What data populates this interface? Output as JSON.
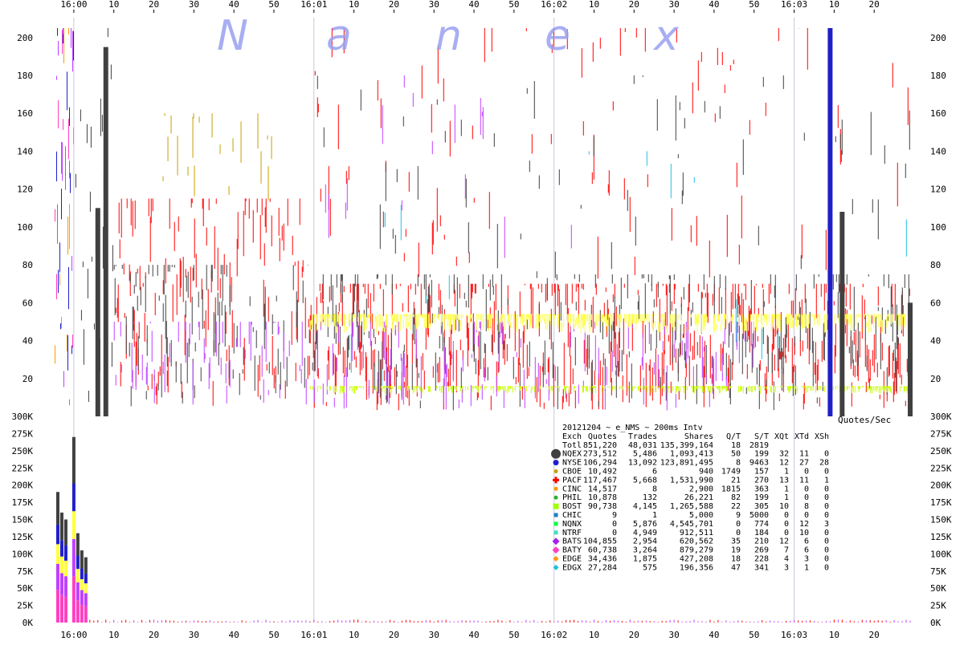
{
  "chart_data": [
    {
      "type": "scatter",
      "panel": "quotes-per-second",
      "watermark": [
        "N",
        "a",
        "n",
        "e",
        "x"
      ],
      "ylim": [
        0,
        205
      ],
      "y_ticks": [
        "20",
        "40",
        "60",
        "80",
        "100",
        "120",
        "140",
        "160",
        "180",
        "200"
      ],
      "x_ticks": [
        "16:00",
        "10",
        "20",
        "30",
        "40",
        "50",
        "16:01",
        "10",
        "20",
        "30",
        "40",
        "50",
        "16:02",
        "10",
        "20",
        "30",
        "40",
        "50",
        "16:03",
        "10",
        "20"
      ],
      "x_range_seconds": [
        -5,
        209
      ],
      "ylabel": "Quotes/Sec",
      "bands": [
        {
          "exch": "NYSE",
          "color": "#2020c8",
          "x": [
            -5,
            0
          ],
          "y": [
            5,
            205
          ],
          "density": 0.5
        },
        {
          "exch": "BATS",
          "color": "#c040ff",
          "x": [
            -5,
            0
          ],
          "y": [
            5,
            205
          ],
          "density": 0.5
        },
        {
          "exch": "EDGE",
          "color": "#ff9900",
          "x": [
            -5,
            0
          ],
          "y": [
            5,
            205
          ],
          "density": 0.4
        },
        {
          "exch": "BATY",
          "color": "#ff40c0",
          "x": [
            -5,
            0
          ],
          "y": [
            5,
            205
          ],
          "density": 0.4
        },
        {
          "exch": "NQEX",
          "color": "#404040",
          "x": [
            0,
            10
          ],
          "y": [
            5,
            205
          ],
          "density": 0.45
        },
        {
          "exch": "PACF",
          "color": "#ff0000",
          "x": [
            10,
            60
          ],
          "y": [
            5,
            115
          ],
          "density": 0.5
        },
        {
          "exch": "NQEX",
          "color": "#404040",
          "x": [
            10,
            60
          ],
          "y": [
            5,
            80
          ],
          "density": 0.35
        },
        {
          "exch": "BATS",
          "color": "#c040ff",
          "x": [
            10,
            60
          ],
          "y": [
            5,
            50
          ],
          "density": 0.25
        },
        {
          "exch": "CBOE",
          "color": "#c8a000",
          "x": [
            20,
            50
          ],
          "y": [
            110,
            160
          ],
          "density": 0.12
        },
        {
          "exch": "PACF",
          "color": "#ff0000",
          "x": [
            60,
            209
          ],
          "y": [
            3,
            70
          ],
          "density": 0.55
        },
        {
          "exch": "NQEX",
          "color": "#404040",
          "x": [
            60,
            209
          ],
          "y": [
            3,
            75
          ],
          "density": 0.35
        },
        {
          "exch": "BATS",
          "color": "#c040ff",
          "x": [
            60,
            170
          ],
          "y": [
            3,
            50
          ],
          "density": 0.22
        },
        {
          "exch": "PACF",
          "color": "#ff0000",
          "x": [
            60,
            209
          ],
          "y": [
            70,
            205
          ],
          "density": 0.12
        },
        {
          "exch": "NQEX",
          "color": "#404040",
          "x": [
            60,
            209
          ],
          "y": [
            70,
            180
          ],
          "density": 0.08
        },
        {
          "exch": "BATS",
          "color": "#c040ff",
          "x": [
            60,
            130
          ],
          "y": [
            70,
            180
          ],
          "density": 0.05
        },
        {
          "exch": "BOST",
          "color": "#ffff40",
          "x": [
            59,
            209
          ],
          "y": [
            44,
            54
          ],
          "density": 0.6
        },
        {
          "exch": "BOST",
          "color": "#c8ff00",
          "x": [
            59,
            209
          ],
          "y": [
            12,
            16
          ],
          "density": 0.5
        },
        {
          "exch": "EDGX",
          "color": "#20c0e0",
          "x": [
            60,
            209
          ],
          "y": [
            5,
            140
          ],
          "density": 0.03
        }
      ],
      "spikes": [
        {
          "exch": "NQEX",
          "x": 8,
          "y": 195
        },
        {
          "exch": "NQEX",
          "x": 6,
          "y": 110
        },
        {
          "exch": "NQEX",
          "x": 192,
          "y": 108
        },
        {
          "exch": "NQEX",
          "x": 209,
          "y": 60
        },
        {
          "exch": "NYSE",
          "x": 189,
          "y": 205
        }
      ]
    },
    {
      "type": "bar",
      "panel": "shares-per-interval",
      "ylim": [
        0,
        300000
      ],
      "y_ticks": [
        "0K",
        "25K",
        "50K",
        "75K",
        "100K",
        "125K",
        "150K",
        "175K",
        "200K",
        "225K",
        "250K",
        "275K",
        "300K"
      ],
      "x_ticks": [
        "16:00",
        "10",
        "20",
        "30",
        "40",
        "50",
        "16:01",
        "10",
        "20",
        "30",
        "40",
        "50",
        "16:02",
        "10",
        "20",
        "30",
        "40",
        "50",
        "16:03",
        "10",
        "20"
      ],
      "peaks": [
        {
          "x": -4,
          "value": 190000
        },
        {
          "x": -3,
          "value": 160000
        },
        {
          "x": -2,
          "value": 150000
        },
        {
          "x": 0,
          "value": 270000
        },
        {
          "x": 1,
          "value": 130000
        },
        {
          "x": 2,
          "value": 105000
        },
        {
          "x": 3,
          "value": 95000
        }
      ]
    }
  ],
  "legend": {
    "title": "20121204 ~ e_NMS ~ 200ms Intv",
    "headers": [
      "Exch",
      "Quotes",
      "Trades",
      "Shares",
      "Q/T",
      "S/T",
      "XQt",
      "XTd",
      "XSh"
    ],
    "rows": [
      {
        "marker": "none",
        "color": "",
        "cells": [
          "Totl",
          "851,220",
          "48,031",
          "135,399,164",
          "18",
          "2819",
          "",
          "",
          ""
        ]
      },
      {
        "marker": "circle-large",
        "color": "#404040",
        "cells": [
          "NQEX",
          "273,512",
          "5,486",
          "1,093,413",
          "50",
          "199",
          "32",
          "11",
          "0"
        ]
      },
      {
        "marker": "circle",
        "color": "#2020c8",
        "cells": [
          "NYSE",
          "106,294",
          "13,092",
          "123,891,495",
          "8",
          "9463",
          "12",
          "27",
          "28"
        ]
      },
      {
        "marker": "circle-small",
        "color": "#c8a000",
        "cells": [
          "CBOE",
          "10,492",
          "6",
          "940",
          "1749",
          "157",
          "1",
          "0",
          "0"
        ]
      },
      {
        "marker": "cross",
        "color": "#ff0000",
        "cells": [
          "PACF",
          "117,467",
          "5,668",
          "1,531,990",
          "21",
          "270",
          "13",
          "11",
          "1"
        ]
      },
      {
        "marker": "circle-small",
        "color": "#ff9900",
        "cells": [
          "CINC",
          "14,517",
          "8",
          "2,900",
          "1815",
          "363",
          "1",
          "0",
          "0"
        ]
      },
      {
        "marker": "circle-small",
        "color": "#30b030",
        "cells": [
          "PHIL",
          "10,878",
          "132",
          "26,221",
          "82",
          "199",
          "1",
          "0",
          "0"
        ]
      },
      {
        "marker": "square",
        "color": "#a0ff00",
        "cells": [
          "BOST",
          "90,738",
          "4,145",
          "1,265,588",
          "22",
          "305",
          "10",
          "8",
          "0"
        ]
      },
      {
        "marker": "square-small",
        "color": "#2080c0",
        "cells": [
          "CHIC",
          "9",
          "1",
          "5,000",
          "9",
          "5000",
          "0",
          "0",
          "0"
        ]
      },
      {
        "marker": "square-small",
        "color": "#00ff40",
        "cells": [
          "NQNX",
          "0",
          "5,876",
          "4,545,701",
          "0",
          "774",
          "0",
          "12",
          "3"
        ]
      },
      {
        "marker": "square-small",
        "color": "#40e0c0",
        "cells": [
          "NTRF",
          "0",
          "4,949",
          "912,511",
          "0",
          "184",
          "0",
          "10",
          "0"
        ]
      },
      {
        "marker": "diamond",
        "color": "#a020f0",
        "cells": [
          "BATS",
          "104,855",
          "2,954",
          "620,562",
          "35",
          "210",
          "12",
          "6",
          "0"
        ]
      },
      {
        "marker": "diamond",
        "color": "#ff40c0",
        "cells": [
          "BATY",
          "60,738",
          "3,264",
          "879,279",
          "19",
          "269",
          "7",
          "6",
          "0"
        ]
      },
      {
        "marker": "diamond-small",
        "color": "#ff9900",
        "cells": [
          "EDGE",
          "34,436",
          "1,875",
          "427,208",
          "18",
          "228",
          "4",
          "3",
          "0"
        ]
      },
      {
        "marker": "diamond-small",
        "color": "#20c0e0",
        "cells": [
          "EDGX",
          "27,284",
          "575",
          "196,356",
          "47",
          "341",
          "3",
          "1",
          "0"
        ]
      }
    ]
  }
}
